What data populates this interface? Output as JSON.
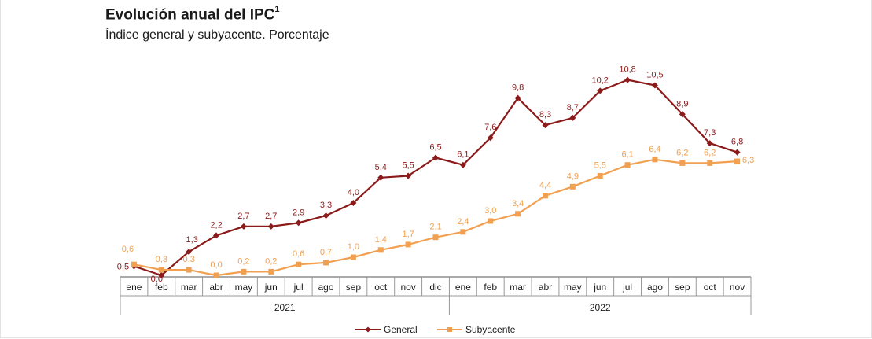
{
  "header": {
    "title": "Evolución anual del IPC",
    "title_footnote": "1",
    "subtitle": "Índice general y subyacente. Porcentaje"
  },
  "chart_data": {
    "type": "line",
    "title": "Evolución anual del IPC",
    "subtitle": "Índice general y subyacente. Porcentaje",
    "categories": [
      "ene",
      "feb",
      "mar",
      "abr",
      "may",
      "jun",
      "jul",
      "ago",
      "sep",
      "oct",
      "nov",
      "dic",
      "ene",
      "feb",
      "mar",
      "abr",
      "may",
      "jun",
      "jul",
      "ago",
      "sep",
      "oct",
      "nov"
    ],
    "years": [
      {
        "label": "2021",
        "start": 0,
        "end": 11
      },
      {
        "label": "2022",
        "start": 12,
        "end": 22
      }
    ],
    "series": [
      {
        "name": "General",
        "color": "#8b1a1a",
        "marker": "diamond",
        "values": [
          0.5,
          0.0,
          1.3,
          2.2,
          2.7,
          2.7,
          2.9,
          3.3,
          4.0,
          5.4,
          5.5,
          6.5,
          6.1,
          7.6,
          9.8,
          8.3,
          8.7,
          10.2,
          10.8,
          10.5,
          8.9,
          7.3,
          6.8
        ],
        "labels": [
          "0,5",
          "0,0",
          "1,3",
          "2,2",
          "2,7",
          "2,7",
          "2,9",
          "3,3",
          "4,0",
          "5,4",
          "5,5",
          "6,5",
          "6,1",
          "7,6",
          "9,8",
          "8,3",
          "8,7",
          "10,2",
          "10,8",
          "10,5",
          "8,9",
          "7,3",
          "6,8"
        ]
      },
      {
        "name": "Subyacente",
        "color": "#f0a050",
        "marker": "square",
        "values": [
          0.6,
          0.3,
          0.3,
          0.0,
          0.2,
          0.2,
          0.6,
          0.7,
          1.0,
          1.4,
          1.7,
          2.1,
          2.4,
          3.0,
          3.4,
          4.4,
          4.9,
          5.5,
          6.1,
          6.4,
          6.2,
          6.2,
          6.3
        ],
        "labels": [
          "0,6",
          "0,3",
          "0,3",
          "0,0",
          "0,2",
          "0,2",
          "0,6",
          "0,7",
          "1,0",
          "1,4",
          "1,7",
          "2,1",
          "2,4",
          "3,0",
          "3,4",
          "4,4",
          "4,9",
          "5,5",
          "6,1",
          "6,4",
          "6,2",
          "6,2",
          "6,3"
        ]
      }
    ],
    "ylim": [
      0,
      10.8
    ],
    "grid": false,
    "legend": "bottom-center"
  }
}
